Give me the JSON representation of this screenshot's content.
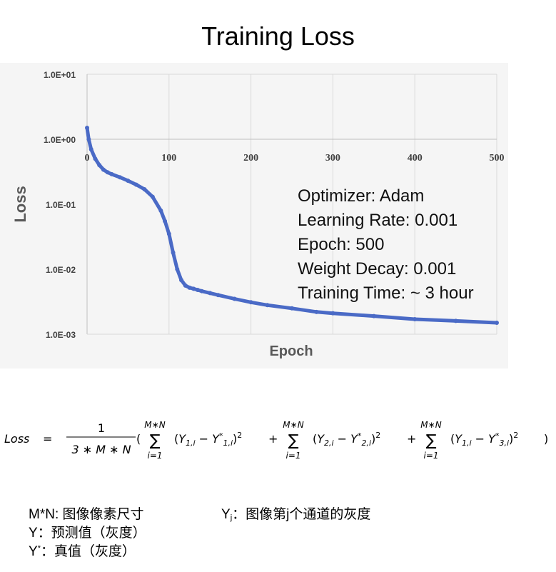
{
  "chart_data": {
    "type": "line",
    "title": "Training Loss",
    "xlabel": "Epoch",
    "ylabel": "Loss",
    "xlim": [
      0,
      500
    ],
    "ylim": [
      0.001,
      10
    ],
    "yscale": "log",
    "x_ticks": [
      "0",
      "100",
      "200",
      "300",
      "400",
      "500"
    ],
    "y_ticks": [
      "1.0E+01",
      "1.0E+00",
      "1.0E-01",
      "1.0E-02",
      "1.0E-03"
    ],
    "grid": "vertical",
    "color": "#4a6ac6",
    "series": [
      {
        "x": [
          0,
          2,
          5,
          10,
          15,
          20,
          25,
          30,
          40,
          50,
          60,
          70,
          80,
          90,
          95,
          100,
          105,
          110,
          115,
          120,
          125,
          130,
          135,
          140,
          150,
          160,
          180,
          200,
          220,
          250,
          280,
          300,
          350,
          400,
          450,
          500
        ],
        "y": [
          1.5,
          1.0,
          0.7,
          0.5,
          0.4,
          0.34,
          0.31,
          0.29,
          0.26,
          0.23,
          0.2,
          0.17,
          0.13,
          0.08,
          0.055,
          0.035,
          0.018,
          0.01,
          0.0068,
          0.0056,
          0.0052,
          0.005,
          0.0048,
          0.0046,
          0.0043,
          0.004,
          0.0035,
          0.0031,
          0.0028,
          0.0025,
          0.0022,
          0.0021,
          0.0019,
          0.0017,
          0.0016,
          0.0015
        ]
      }
    ],
    "annotations": [
      "Optimizer: Adam",
      "Learning Rate: 0.001",
      "Epoch: 500",
      "Weight Decay: 0.001",
      "Training Time: ~ 3 hour"
    ]
  },
  "formula": {
    "lhs": "Loss",
    "eq": "=",
    "numerator": "1",
    "denominator": "3 ∗ M ∗ N",
    "sum_upper": "M∗N",
    "sum_lower": "i=1",
    "sigma": "∑",
    "plus": "+",
    "open_paren": "(",
    "close_paren": ")",
    "terms": [
      {
        "y": "Y",
        "y_sub": "1,i",
        "ys_sub": "1,i"
      },
      {
        "y": "Y",
        "y_sub": "2,i",
        "ys_sub": "2,i"
      },
      {
        "y": "Y",
        "y_sub": "1,i",
        "ys_sub": "3,i"
      }
    ],
    "star": "*",
    "minus": "−",
    "squared": "2"
  },
  "legend": {
    "mn": "M*N: 图像像素尺寸",
    "y": "Y：预测值（灰度）",
    "ystar_base": "Y",
    "ystar_sup": "*",
    "ystar_text": "：真值（灰度）",
    "yj_base": "Y",
    "yj_sub": "j",
    "yj_text": "：图像第j个通道的灰度"
  }
}
